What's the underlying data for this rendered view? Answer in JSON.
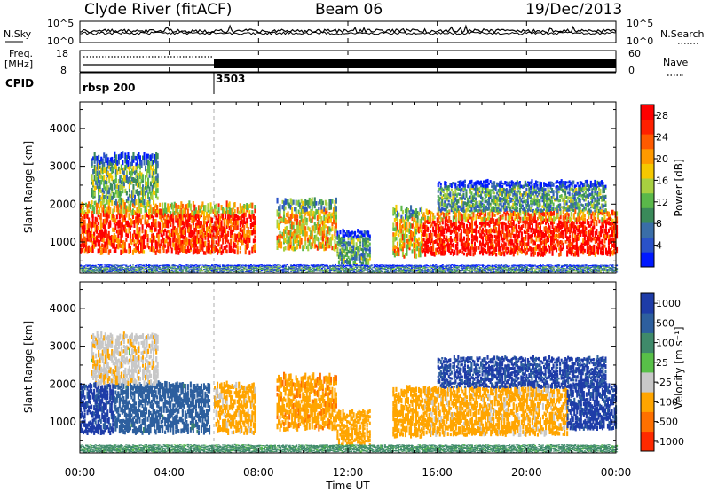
{
  "header": {
    "station": "Clyde River (fitACF)",
    "beam": "Beam 06",
    "date": "19/Dec/2013"
  },
  "noise_panel": {
    "left_label": "N.Sky",
    "right_label": "N.Search",
    "left_ticks": [
      "10^5",
      "10^0"
    ],
    "right_ticks": [
      "10^5",
      "10^0"
    ],
    "legend_style": "solid / dotted"
  },
  "freq_panel": {
    "left_label_top": "Freq.",
    "left_label_bottom": "[MHz]",
    "left_ticks": [
      "18",
      "8"
    ],
    "right_label": "Nave",
    "right_ticks": [
      "60",
      "0"
    ]
  },
  "cpid_panel": {
    "label": "CPID",
    "segments": [
      {
        "name": "rbsp 200",
        "start_hour": 0
      },
      {
        "name": "3503",
        "start_hour": 6
      }
    ]
  },
  "x_axis": {
    "label": "Time UT",
    "ticks": [
      "00:00",
      "04:00",
      "08:00",
      "12:00",
      "16:00",
      "20:00",
      "00:00"
    ],
    "range_hours": [
      0,
      24
    ]
  },
  "y_axis": {
    "label": "Slant Range [km]",
    "ticks": [
      "1000",
      "2000",
      "3000",
      "4000"
    ],
    "range_km": [
      180,
      4700
    ]
  },
  "power_scale": {
    "label": "Power [dB]",
    "ticks": [
      "4",
      "8",
      "12",
      "16",
      "20",
      "24",
      "28"
    ],
    "colors": [
      "#0019ff",
      "#2a52c8",
      "#3a6ea8",
      "#3a8a5a",
      "#5ab84a",
      "#a8d040",
      "#f5c800",
      "#ff9a00",
      "#ff5a00",
      "#ff2000",
      "#ff0000"
    ]
  },
  "velocity_scale": {
    "label": "Velocity [m s⁻¹]",
    "ticks": [
      "1000",
      "500",
      "100",
      "25",
      "-25",
      "-100",
      "-500",
      "-1000"
    ],
    "colors": [
      "#1e3ca8",
      "#2d5f9e",
      "#3f8a6a",
      "#58c048",
      "#c8c8c8",
      "#ffa500",
      "#ff7000",
      "#ff2a00"
    ]
  },
  "chart_data": [
    {
      "type": "heatmap",
      "name": "power",
      "title": "Clyde River (fitACF)",
      "xlabel": "Time UT",
      "ylabel": "Slant Range [km]",
      "colorbar_label": "Power [dB]",
      "colorbar_range": [
        0,
        30
      ],
      "xlim": [
        0,
        24
      ],
      "ylim": [
        180,
        4700
      ],
      "echo_regions": [
        {
          "t_start": 0.0,
          "t_end": 7.8,
          "r_low": 700,
          "r_high": 2000,
          "power_dB": 26
        },
        {
          "t_start": 0.5,
          "t_end": 3.5,
          "r_low": 2000,
          "r_high": 3300,
          "power_dB": 12
        },
        {
          "t_start": 8.8,
          "t_end": 11.5,
          "r_low": 800,
          "r_high": 2100,
          "power_dB": 18
        },
        {
          "t_start": 11.5,
          "t_end": 13.0,
          "r_low": 400,
          "r_high": 1300,
          "power_dB": 10
        },
        {
          "t_start": 14.0,
          "t_end": 15.3,
          "r_low": 600,
          "r_high": 1900,
          "power_dB": 18
        },
        {
          "t_start": 15.3,
          "t_end": 24.0,
          "r_low": 650,
          "r_high": 1800,
          "power_dB": 28
        },
        {
          "t_start": 16.0,
          "t_end": 23.5,
          "r_low": 1800,
          "r_high": 2600,
          "power_dB": 10
        },
        {
          "t_start": 0.0,
          "t_end": 24.0,
          "r_low": 200,
          "r_high": 400,
          "power_dB": 8
        }
      ]
    },
    {
      "type": "heatmap",
      "name": "velocity",
      "xlabel": "Time UT",
      "ylabel": "Slant Range [km]",
      "colorbar_label": "Velocity [m s⁻¹]",
      "colorbar_range": [
        -1000,
        1000
      ],
      "xlim": [
        0,
        24
      ],
      "ylim": [
        180,
        4700
      ],
      "echo_regions": [
        {
          "t_start": 0.0,
          "t_end": 1.5,
          "r_low": 700,
          "r_high": 2000,
          "velocity": 700
        },
        {
          "t_start": 1.5,
          "t_end": 5.8,
          "r_low": 700,
          "r_high": 2000,
          "velocity": 200
        },
        {
          "t_start": 6.0,
          "t_end": 7.8,
          "r_low": 700,
          "r_high": 2000,
          "velocity": -150
        },
        {
          "t_start": 0.5,
          "t_end": 3.5,
          "r_low": 2000,
          "r_high": 3300,
          "velocity": -80
        },
        {
          "t_start": 8.8,
          "t_end": 11.5,
          "r_low": 800,
          "r_high": 2200,
          "velocity": -400
        },
        {
          "t_start": 11.5,
          "t_end": 13.0,
          "r_low": 400,
          "r_high": 1300,
          "velocity": -200
        },
        {
          "t_start": 14.0,
          "t_end": 15.3,
          "r_low": 600,
          "r_high": 1900,
          "velocity": -300
        },
        {
          "t_start": 15.3,
          "t_end": 21.8,
          "r_low": 650,
          "r_high": 1900,
          "velocity": -150
        },
        {
          "t_start": 21.8,
          "t_end": 24.0,
          "r_low": 800,
          "r_high": 2000,
          "velocity": 700
        },
        {
          "t_start": 16.0,
          "t_end": 23.5,
          "r_low": 1900,
          "r_high": 2700,
          "velocity": 600
        },
        {
          "t_start": 0.0,
          "t_end": 24.0,
          "r_low": 200,
          "r_high": 400,
          "velocity": 50
        }
      ]
    }
  ]
}
